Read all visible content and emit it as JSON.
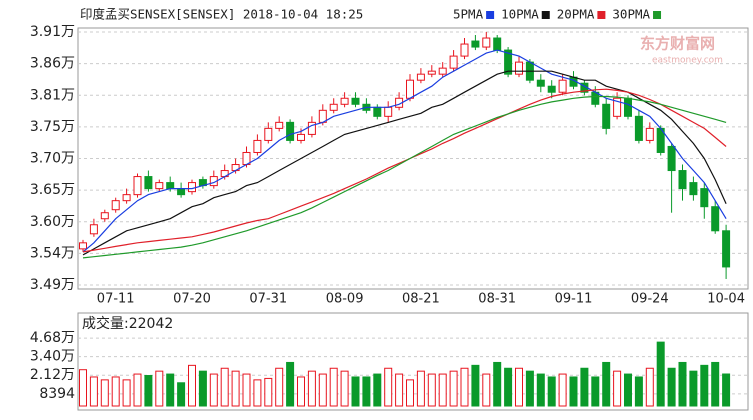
{
  "chart_data": [
    {
      "type": "candlestick",
      "title": "印度孟买SENSEX[SENSEX] 2018-10-04 18:25",
      "watermark": "东方财富网",
      "watermark_sub": "eastmoney.com",
      "categories": [
        null,
        null,
        null,
        "07-11",
        null,
        null,
        null,
        null,
        null,
        null,
        "07-20",
        null,
        null,
        null,
        null,
        null,
        null,
        "07-31",
        null,
        null,
        null,
        null,
        null,
        null,
        "08-09",
        null,
        null,
        null,
        null,
        null,
        null,
        "08-21",
        null,
        null,
        null,
        null,
        null,
        null,
        "08-31",
        null,
        null,
        null,
        null,
        null,
        null,
        "09-11",
        null,
        null,
        null,
        null,
        null,
        null,
        "09-24",
        null,
        null,
        null,
        null,
        null,
        null,
        "10-04"
      ],
      "open": [
        3.55,
        3.575,
        3.6,
        3.615,
        3.63,
        3.64,
        3.67,
        3.65,
        3.66,
        3.65,
        3.645,
        3.665,
        3.655,
        3.67,
        3.68,
        3.69,
        3.71,
        3.73,
        3.75,
        3.76,
        3.73,
        3.74,
        3.76,
        3.78,
        3.79,
        3.8,
        3.79,
        3.785,
        3.77,
        3.785,
        3.8,
        3.83,
        3.84,
        3.84,
        3.85,
        3.87,
        3.895,
        3.885,
        3.9,
        3.88,
        3.84,
        3.86,
        3.83,
        3.82,
        3.81,
        3.835,
        3.825,
        3.81,
        3.79,
        3.77,
        3.8,
        3.77,
        3.73,
        3.75,
        3.72,
        3.68,
        3.66,
        3.65,
        3.62,
        3.58
      ],
      "high": [
        3.565,
        3.6,
        3.615,
        3.635,
        3.65,
        3.675,
        3.68,
        3.665,
        3.67,
        3.66,
        3.665,
        3.67,
        3.68,
        3.69,
        3.7,
        3.72,
        3.74,
        3.76,
        3.77,
        3.765,
        3.75,
        3.77,
        3.79,
        3.8,
        3.81,
        3.81,
        3.8,
        3.79,
        3.795,
        3.81,
        3.84,
        3.85,
        3.855,
        3.86,
        3.88,
        3.9,
        3.905,
        3.91,
        3.905,
        3.885,
        3.87,
        3.865,
        3.84,
        3.83,
        3.84,
        3.845,
        3.83,
        3.82,
        3.8,
        3.81,
        3.805,
        3.78,
        3.76,
        3.755,
        3.725,
        3.69,
        3.67,
        3.66,
        3.63,
        3.59
      ],
      "low": [
        3.545,
        3.57,
        3.595,
        3.61,
        3.625,
        3.635,
        3.645,
        3.645,
        3.645,
        3.635,
        3.64,
        3.65,
        3.65,
        3.665,
        3.675,
        3.685,
        3.705,
        3.725,
        3.745,
        3.725,
        3.725,
        3.735,
        3.755,
        3.775,
        3.785,
        3.785,
        3.775,
        3.765,
        3.76,
        3.78,
        3.795,
        3.825,
        3.835,
        3.835,
        3.845,
        3.865,
        3.88,
        3.88,
        3.875,
        3.835,
        3.835,
        3.825,
        3.81,
        3.8,
        3.805,
        3.815,
        3.805,
        3.785,
        3.74,
        3.765,
        3.765,
        3.725,
        3.725,
        3.705,
        3.61,
        3.63,
        3.63,
        3.6,
        3.575,
        3.5
      ],
      "close": [
        3.56,
        3.59,
        3.61,
        3.63,
        3.64,
        3.67,
        3.65,
        3.66,
        3.65,
        3.64,
        3.66,
        3.655,
        3.67,
        3.68,
        3.69,
        3.71,
        3.73,
        3.75,
        3.76,
        3.73,
        3.74,
        3.76,
        3.78,
        3.79,
        3.8,
        3.79,
        3.78,
        3.77,
        3.785,
        3.8,
        3.83,
        3.84,
        3.845,
        3.85,
        3.87,
        3.89,
        3.885,
        3.9,
        3.88,
        3.84,
        3.86,
        3.83,
        3.82,
        3.81,
        3.83,
        3.82,
        3.81,
        3.79,
        3.75,
        3.8,
        3.77,
        3.73,
        3.75,
        3.71,
        3.68,
        3.65,
        3.64,
        3.62,
        3.58,
        3.52
      ],
      "up_color": "#e8141e",
      "down_color": "#0a9a2a",
      "series": [
        {
          "name": "5PMA",
          "color": "#1a3ee0",
          "values": [
            3.545,
            3.56,
            3.58,
            3.6,
            3.615,
            3.63,
            3.64,
            3.645,
            3.65,
            3.65,
            3.65,
            3.655,
            3.66,
            3.67,
            3.68,
            3.69,
            3.7,
            3.715,
            3.73,
            3.74,
            3.745,
            3.755,
            3.76,
            3.77,
            3.775,
            3.78,
            3.785,
            3.785,
            3.785,
            3.79,
            3.8,
            3.81,
            3.82,
            3.835,
            3.845,
            3.855,
            3.865,
            3.875,
            3.88,
            3.875,
            3.87,
            3.86,
            3.85,
            3.84,
            3.835,
            3.83,
            3.82,
            3.81,
            3.8,
            3.795,
            3.79,
            3.78,
            3.77,
            3.75,
            3.725,
            3.7,
            3.68,
            3.66,
            3.63,
            3.6
          ]
        },
        {
          "name": "10PMA",
          "color": "#111111",
          "values": [
            3.54,
            3.55,
            3.56,
            3.57,
            3.58,
            3.585,
            3.59,
            3.595,
            3.6,
            3.61,
            3.62,
            3.625,
            3.635,
            3.64,
            3.645,
            3.655,
            3.66,
            3.67,
            3.68,
            3.69,
            3.7,
            3.71,
            3.72,
            3.73,
            3.74,
            3.745,
            3.75,
            3.755,
            3.76,
            3.765,
            3.77,
            3.775,
            3.785,
            3.79,
            3.8,
            3.81,
            3.82,
            3.83,
            3.84,
            3.845,
            3.845,
            3.845,
            3.845,
            3.845,
            3.84,
            3.835,
            3.83,
            3.83,
            3.82,
            3.815,
            3.81,
            3.8,
            3.79,
            3.78,
            3.765,
            3.745,
            3.725,
            3.7,
            3.665,
            3.625
          ]
        },
        {
          "name": "20PMA",
          "color": "#e0202a",
          "values": [
            3.545,
            3.548,
            3.551,
            3.554,
            3.557,
            3.56,
            3.562,
            3.564,
            3.566,
            3.568,
            3.57,
            3.574,
            3.578,
            3.583,
            3.588,
            3.593,
            3.597,
            3.6,
            3.607,
            3.614,
            3.621,
            3.628,
            3.635,
            3.642,
            3.65,
            3.658,
            3.666,
            3.675,
            3.684,
            3.692,
            3.7,
            3.708,
            3.716,
            3.725,
            3.733,
            3.742,
            3.75,
            3.758,
            3.766,
            3.774,
            3.782,
            3.79,
            3.797,
            3.803,
            3.807,
            3.81,
            3.812,
            3.814,
            3.815,
            3.813,
            3.81,
            3.805,
            3.798,
            3.79,
            3.78,
            3.77,
            3.76,
            3.75,
            3.735,
            3.72
          ]
        },
        {
          "name": "30PMA",
          "color": "#1f9a2a",
          "values": [
            3.535,
            3.537,
            3.539,
            3.541,
            3.543,
            3.545,
            3.547,
            3.549,
            3.551,
            3.553,
            3.556,
            3.56,
            3.565,
            3.57,
            3.575,
            3.58,
            3.586,
            3.592,
            3.598,
            3.604,
            3.61,
            3.618,
            3.627,
            3.636,
            3.645,
            3.654,
            3.663,
            3.672,
            3.68,
            3.69,
            3.7,
            3.71,
            3.72,
            3.73,
            3.74,
            3.747,
            3.754,
            3.761,
            3.768,
            3.774,
            3.78,
            3.785,
            3.79,
            3.794,
            3.797,
            3.8,
            3.802,
            3.803,
            3.803,
            3.802,
            3.8,
            3.797,
            3.794,
            3.79,
            3.785,
            3.78,
            3.775,
            3.77,
            3.765,
            3.76
          ]
        }
      ],
      "ylim": [
        3.49,
        3.91
      ],
      "yticks": [
        {
          "value": 3.49,
          "label": "3.49万"
        },
        {
          "value": 3.5425,
          "label": "3.54万"
        },
        {
          "value": 3.595,
          "label": "3.60万"
        },
        {
          "value": 3.6475,
          "label": "3.65万"
        },
        {
          "value": 3.7,
          "label": "3.70万"
        },
        {
          "value": 3.7525,
          "label": "3.75万"
        },
        {
          "value": 3.805,
          "label": "3.81万"
        },
        {
          "value": 3.8575,
          "label": "3.86万"
        },
        {
          "value": 3.91,
          "label": "3.91万"
        }
      ],
      "grid": true
    },
    {
      "type": "bar",
      "label": "成交量:",
      "values": [
        25000,
        20000,
        18000,
        20000,
        18000,
        22000,
        21000,
        24000,
        22000,
        16000,
        28000,
        24000,
        22000,
        26000,
        24000,
        22000,
        18000,
        19000,
        26000,
        30000,
        20000,
        24000,
        22000,
        26000,
        24000,
        20000,
        20000,
        22000,
        26000,
        22000,
        18000,
        24000,
        22000,
        22000,
        24000,
        26000,
        28000,
        22000,
        30000,
        26000,
        26000,
        24000,
        22000,
        20000,
        22000,
        20000,
        26000,
        20000,
        30000,
        24000,
        22000,
        20000,
        26000,
        44000,
        26000,
        30000,
        24000,
        28000,
        30000,
        22042
      ],
      "ylim": [
        0,
        62000
      ],
      "yticks": [
        8394,
        {
          "value": 21200,
          "label": "2.12万"
        },
        {
          "value": 34000,
          "label": "3.40万"
        },
        {
          "value": 46800,
          "label": "4.68万"
        }
      ],
      "grid": true
    }
  ]
}
